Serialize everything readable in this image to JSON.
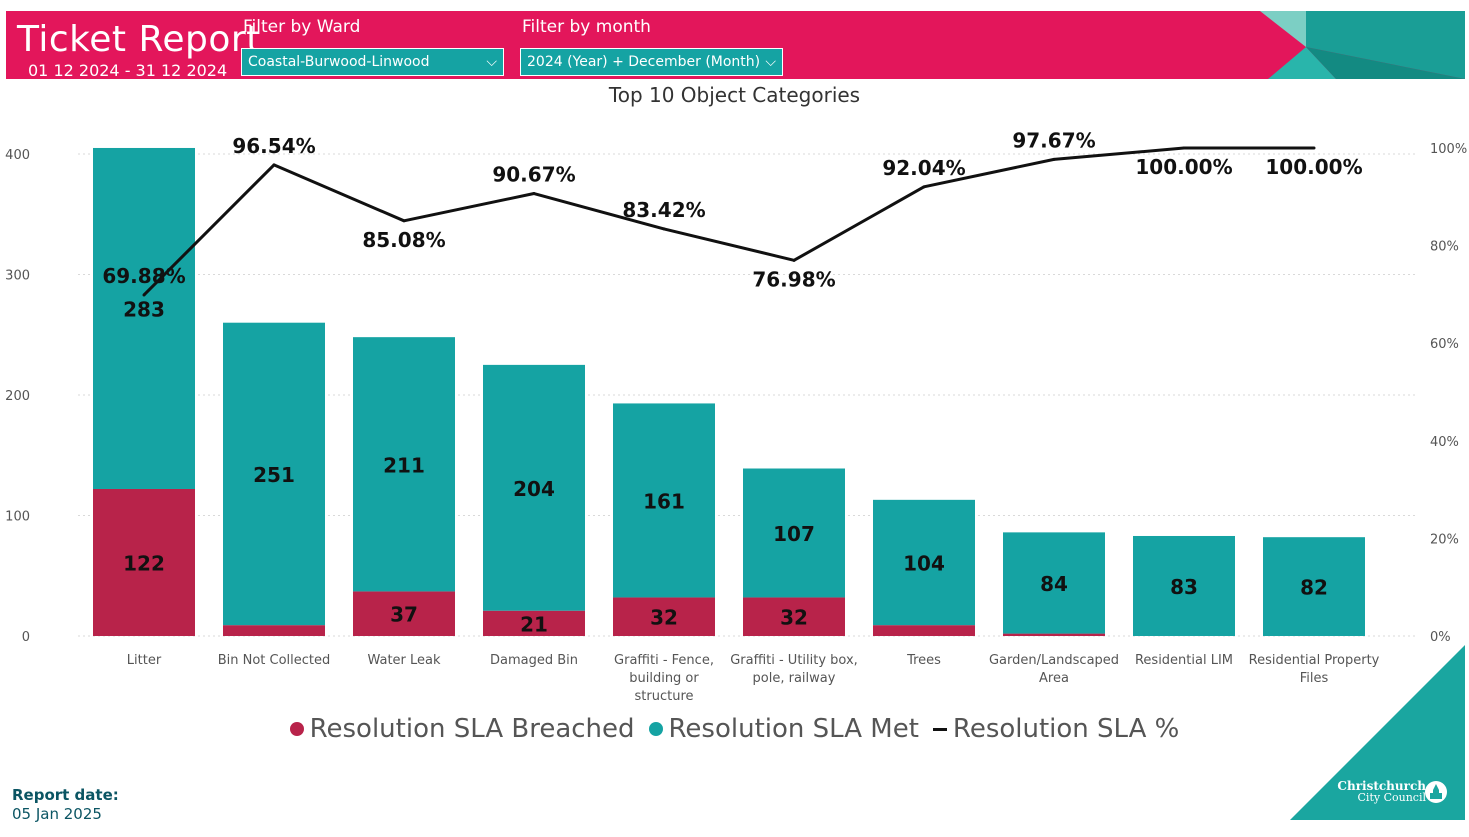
{
  "header": {
    "title": "Ticket Report",
    "date_range": "01 12 2024 - 31 12 2024",
    "ward_filter": {
      "label": "Filter by Ward",
      "value": "Coastal-Burwood-Linwood"
    },
    "month_filter": {
      "label": "Filter by month",
      "value": "2024 (Year) + December (Month)"
    }
  },
  "colors": {
    "header": "#e3165b",
    "breached": "#b8234a",
    "met": "#15a3a3",
    "line": "#111111",
    "dark_teal": "#0d8787"
  },
  "footer": {
    "report_label": "Report date:",
    "report_date": "05 Jan 2025"
  },
  "brand": {
    "line1": "Christchurch",
    "line2": "City Council",
    "icon": "cathedral-logo-icon"
  },
  "legend": [
    {
      "name": "Resolution SLA Breached"
    },
    {
      "name": "Resolution SLA Met"
    },
    {
      "name": "Resolution SLA %"
    }
  ],
  "chart_data": {
    "type": "bar",
    "stacked": true,
    "title": "Top 10 Object Categories",
    "categories": [
      [
        "Litter"
      ],
      [
        "Bin Not Collected"
      ],
      [
        "Water Leak"
      ],
      [
        "Damaged Bin"
      ],
      [
        "Graffiti - Fence,",
        "building or",
        "structure"
      ],
      [
        "Graffiti - Utility box,",
        "pole, railway"
      ],
      [
        "Trees"
      ],
      [
        "Garden/Landscaped",
        "Area"
      ],
      [
        "Residential LIM"
      ],
      [
        "Residential Property",
        "Files"
      ]
    ],
    "series": [
      {
        "name": "Resolution SLA Breached",
        "values": [
          122,
          9,
          37,
          21,
          32,
          32,
          9,
          2,
          0,
          0
        ],
        "labels": [
          "122",
          "",
          "37",
          "21",
          "32",
          "32",
          "",
          "",
          "",
          ""
        ]
      },
      {
        "name": "Resolution SLA Met",
        "values": [
          283,
          251,
          211,
          204,
          161,
          107,
          104,
          84,
          83,
          82
        ],
        "labels": [
          "283",
          "251",
          "211",
          "204",
          "161",
          "107",
          "104",
          "84",
          "83",
          "82"
        ]
      }
    ],
    "line": {
      "name": "Resolution SLA %",
      "values": [
        69.88,
        96.54,
        85.08,
        90.67,
        83.42,
        76.98,
        92.04,
        97.67,
        100.0,
        100.0
      ],
      "labels": [
        "69.88%",
        "96.54%",
        "85.08%",
        "90.67%",
        "83.42%",
        "76.98%",
        "92.04%",
        "97.67%",
        "100.00%",
        "100.00%"
      ]
    },
    "y_left": {
      "min": 0,
      "max": 400,
      "ticks": [
        "0",
        "100",
        "200",
        "300",
        "400"
      ]
    },
    "y_right": {
      "min": 0,
      "max": 100,
      "ticks": [
        "0%",
        "20%",
        "40%",
        "60%",
        "80%",
        "100%"
      ]
    },
    "grid": true
  }
}
